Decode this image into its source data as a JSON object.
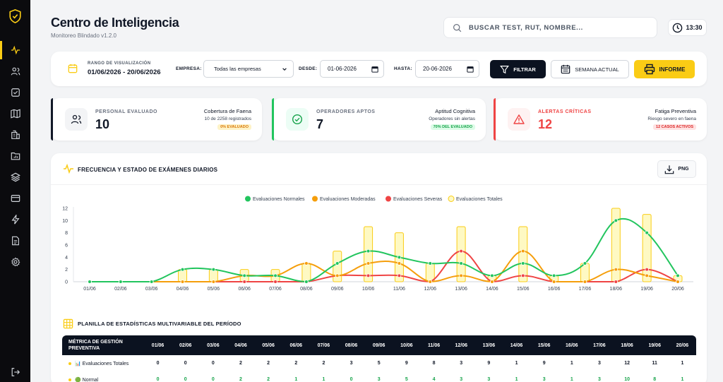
{
  "app": {
    "title": "Centro de Inteligencia",
    "subtitle": "Monitoreo Blindado v1.2.0"
  },
  "search": {
    "placeholder": "BUSCAR TEST, RUT, NOMBRE..."
  },
  "clock": {
    "time": "13:30"
  },
  "sidebar": {
    "items": [
      "pulse-icon",
      "users-icon",
      "checklist-icon",
      "map-icon",
      "building-icon",
      "folder-chart-icon",
      "layers-icon",
      "card-icon",
      "bolt-icon",
      "document-icon",
      "gear-icon"
    ],
    "active_index": 0,
    "accent": "#facc15"
  },
  "filters": {
    "range_label": "RANGO DE VISUALIZACIÓN",
    "range_value": "01/06/2026 - 20/06/2026",
    "empresa_label": "EMPRESA:",
    "empresa_value": "Todas las empresas",
    "desde_label": "DESDE:",
    "desde_value": "01-06-2026",
    "hasta_label": "HASTA:",
    "hasta_value": "20-06-2026",
    "filtrar_label": "FILTRAR",
    "semana_label": "SEMANA ACTUAL",
    "informe_label": "INFORME"
  },
  "kpis": [
    {
      "label": "PERSONAL EVALUADO",
      "value": "10",
      "right_title": "Cobertura de Faena",
      "right_sub": "10 de 2258 registrados",
      "badge": "0% EVALUADO",
      "accent": "#111827",
      "icon": "users-icon"
    },
    {
      "label": "OPERADORES APTOS",
      "value": "7",
      "right_title": "Aptitud Cognitiva",
      "right_sub": "Operadores sin alertas",
      "badge": "70% DEL EVALUADO",
      "accent": "#22c55e",
      "icon": "check-circle-icon"
    },
    {
      "label": "ALERTAS CRÍTICAS",
      "value": "12",
      "right_title": "Fatiga Preventiva",
      "right_sub": "Riesgo severo en faena",
      "badge": "12 CASOS ACTIVOS",
      "accent": "#ef4444",
      "icon": "warning-icon"
    }
  ],
  "chart_card": {
    "title": "FRECUENCIA Y ESTADO DE EXÁMENES DIARIOS",
    "png_label": "PNG"
  },
  "chart_data": {
    "type": "line",
    "x": [
      "01/06",
      "02/06",
      "03/06",
      "04/06",
      "05/06",
      "06/06",
      "07/06",
      "08/06",
      "09/06",
      "10/06",
      "11/06",
      "12/06",
      "13/06",
      "14/06",
      "15/06",
      "16/06",
      "17/06",
      "18/06",
      "19/06",
      "20/06"
    ],
    "ylim": [
      0,
      12
    ],
    "yticks": [
      0,
      2,
      4,
      6,
      8,
      10,
      12
    ],
    "grid": false,
    "legend": "top-center",
    "series": [
      {
        "name": "Evaluaciones Normales",
        "type": "line",
        "color": "#22c55e",
        "values": [
          0,
          0,
          0,
          2,
          2,
          1,
          1,
          0,
          3,
          5,
          4,
          3,
          3,
          1,
          3,
          1,
          3,
          10,
          8,
          1
        ]
      },
      {
        "name": "Evaluaciones Moderadas",
        "type": "line",
        "color": "#f59e0b",
        "values": [
          0,
          0,
          0,
          0,
          0,
          1,
          1,
          3,
          1,
          3,
          3,
          0,
          1,
          0,
          5,
          0,
          0,
          2,
          1,
          0
        ]
      },
      {
        "name": "Evaluaciones Severas",
        "type": "line",
        "color": "#ef4444",
        "values": [
          0,
          0,
          0,
          0,
          0,
          0,
          0,
          0,
          1,
          1,
          1,
          0,
          5,
          0,
          1,
          0,
          0,
          0,
          2,
          0
        ]
      },
      {
        "name": "Evaluaciones Totales",
        "type": "bar",
        "color": "#facc15",
        "values": [
          0,
          0,
          0,
          2,
          2,
          2,
          2,
          3,
          5,
          9,
          8,
          3,
          9,
          1,
          9,
          1,
          3,
          12,
          11,
          1
        ]
      }
    ]
  },
  "table": {
    "title": "PLANILLA DE ESTADÍSTICAS MULTIVARIABLE DEL PERÍODO",
    "header_first": "MÉTRICA DE GESTIÓN PREVENTIVA",
    "rows": [
      {
        "label": "📊 Evaluaciones Totales",
        "dot_color": "#facc15",
        "values": [
          "0",
          "0",
          "0",
          "2",
          "2",
          "2",
          "2",
          "3",
          "5",
          "9",
          "8",
          "3",
          "9",
          "1",
          "9",
          "1",
          "3",
          "12",
          "11",
          "1"
        ],
        "color": "#111827"
      },
      {
        "label": "🟢 Normal",
        "dot_color": "#facc15",
        "values": [
          "0",
          "0",
          "0",
          "2",
          "2",
          "1",
          "1",
          "0",
          "3",
          "5",
          "4",
          "3",
          "3",
          "1",
          "3",
          "1",
          "3",
          "10",
          "8",
          "1"
        ],
        "color": "#16a34a"
      }
    ]
  }
}
